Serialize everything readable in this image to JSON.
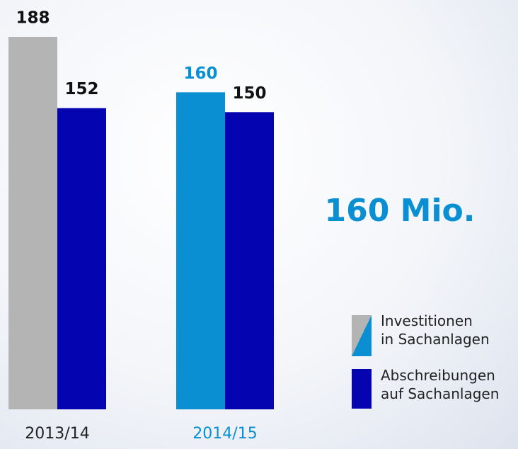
{
  "chart_data": {
    "type": "bar",
    "categories": [
      "2013/14",
      "2014/15"
    ],
    "category_colors": [
      "#222222",
      "#0a8fd2"
    ],
    "series": [
      {
        "name": "Investitionen\nin Sachanlagen",
        "colors": [
          "#b4b4b4",
          "#0a8fd2"
        ],
        "values": [
          188,
          160
        ]
      },
      {
        "name": "Abschreibungen\nauf Sachanlagen",
        "color": "#0404b0",
        "values": [
          152,
          150
        ]
      }
    ],
    "annotation": "160 Mio.",
    "annotation_color": "#0a8fd2"
  }
}
